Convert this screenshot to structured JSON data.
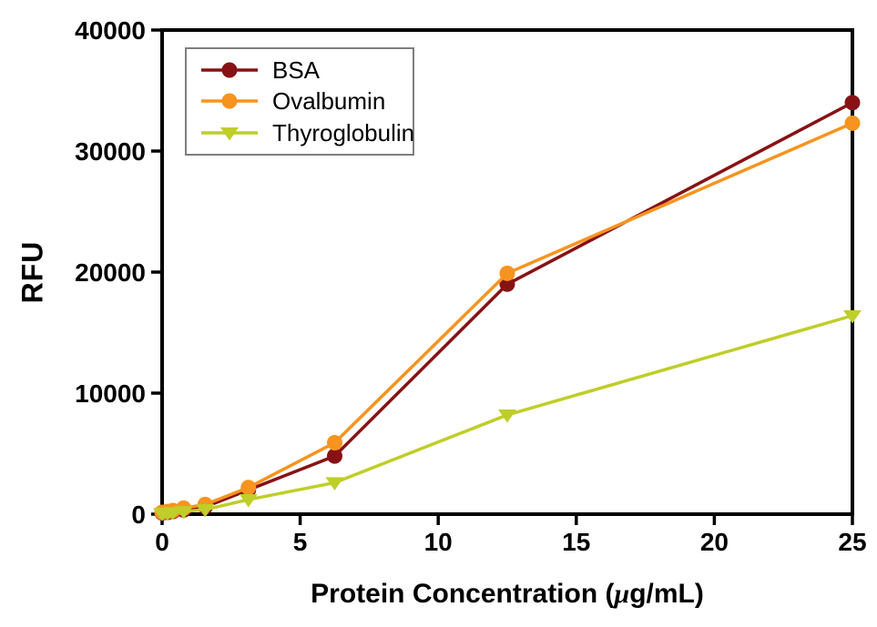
{
  "chart_data": {
    "type": "line",
    "title": "",
    "xlabel": "Protein Concentration (μg/mL)",
    "xlabel_parts": [
      "Protein Concentration (",
      "μ",
      "g/mL)"
    ],
    "ylabel": "RFU",
    "xlim": [
      0,
      25
    ],
    "ylim": [
      0,
      40000
    ],
    "xticks": [
      0,
      5,
      10,
      15,
      20,
      25
    ],
    "yticks": [
      0,
      10000,
      20000,
      30000,
      40000
    ],
    "grid": false,
    "legend_position": "top-left",
    "x": [
      0,
      0.2,
      0.39,
      0.78,
      1.56,
      3.125,
      6.25,
      12.5,
      25
    ],
    "series": [
      {
        "name": "BSA",
        "marker": "circle",
        "color": "#871215",
        "values": [
          100,
          150,
          220,
          350,
          600,
          2000,
          4800,
          19000,
          34000
        ]
      },
      {
        "name": "Ovalbumin",
        "marker": "circle",
        "color": "#f79420",
        "values": [
          150,
          220,
          300,
          500,
          800,
          2200,
          5900,
          19900,
          32300
        ]
      },
      {
        "name": "Thyroglobulin",
        "marker": "triangle-down",
        "color": "#bfce28",
        "values": [
          60,
          90,
          130,
          220,
          380,
          1200,
          2600,
          8200,
          16400
        ]
      }
    ],
    "axis_color": "#000000",
    "legend_border_color": "#7f7f7f"
  }
}
